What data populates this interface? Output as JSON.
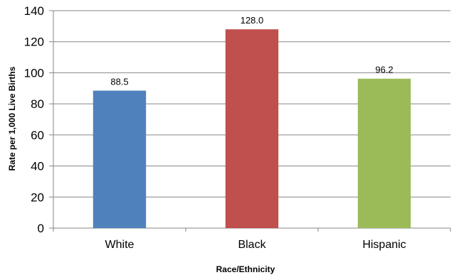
{
  "chart_data": {
    "type": "bar",
    "categories": [
      "White",
      "Black",
      "Hispanic"
    ],
    "values": [
      88.5,
      128.0,
      96.2
    ],
    "value_labels": [
      "88.5",
      "128.0",
      "96.2"
    ],
    "colors": [
      "#4f81bd",
      "#c0504d",
      "#9bbb59"
    ],
    "title": "",
    "xlabel": "Race/Ethnicity",
    "ylabel": "Rate per 1,000 Live Births",
    "ylim": [
      0,
      140
    ],
    "yticks": [
      0,
      20,
      40,
      60,
      80,
      100,
      120,
      140
    ],
    "grid": true,
    "legend": "none"
  }
}
